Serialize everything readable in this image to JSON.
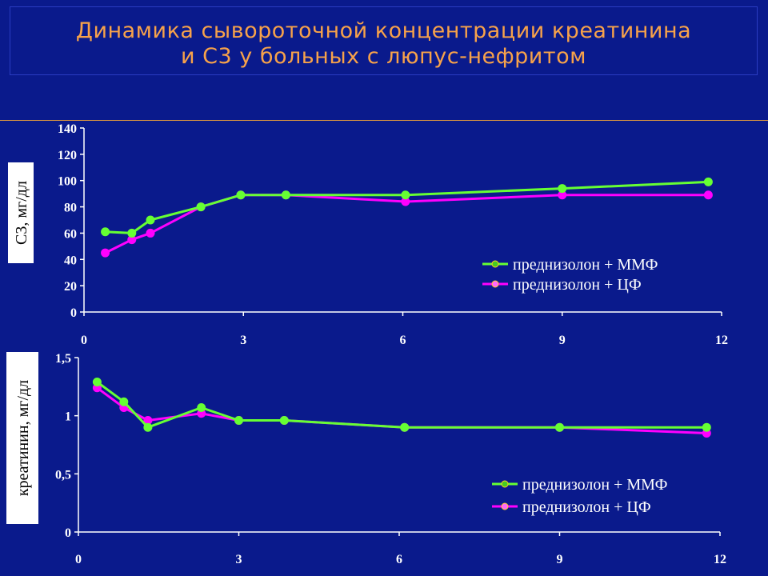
{
  "title": {
    "line1": "Динамика сывороточной концентрации креатинина",
    "line2": "и С3 у больных с люпус-нефритом"
  },
  "colors": {
    "background": "#0a1a8c",
    "title": "#f7a24a",
    "series_mmf_line": "#66ff33",
    "series_mmf_marker": "#44cc22",
    "series_cf_line": "#ff00ff",
    "series_cf_marker": "#ff66ff",
    "axis": "#ffffff"
  },
  "chart_data": [
    {
      "type": "line",
      "ylabel": "С3, мг/дл",
      "xlabel": "",
      "xlim": [
        0,
        12
      ],
      "ylim": [
        0,
        140
      ],
      "x_ticks": [
        "0",
        "3",
        "6",
        "9",
        "12"
      ],
      "x_tick_values": [
        0,
        3,
        6,
        9,
        12
      ],
      "y_ticks": [
        "0",
        "20",
        "40",
        "60",
        "80",
        "100",
        "120",
        "140"
      ],
      "y_tick_values": [
        0,
        20,
        40,
        60,
        80,
        100,
        120,
        140
      ],
      "grid": false,
      "legend_position": "bottom-right",
      "series": [
        {
          "name": "преднизолон + ММФ",
          "x": [
            0.4,
            0.9,
            1.25,
            2.2,
            2.95,
            3.8,
            6.05,
            9.0,
            11.75
          ],
          "y": [
            61,
            60,
            70,
            80,
            89,
            89,
            89,
            94,
            99
          ]
        },
        {
          "name": "преднизолон + ЦФ",
          "x": [
            0.4,
            0.9,
            1.25,
            2.2,
            2.95,
            3.8,
            6.05,
            9.0,
            11.75
          ],
          "y": [
            45,
            55,
            60,
            80,
            89,
            89,
            84,
            89,
            89
          ]
        }
      ]
    },
    {
      "type": "line",
      "ylabel": "креатинин, мг/дл",
      "xlabel": "",
      "xlim": [
        0,
        12
      ],
      "ylim": [
        0,
        1.5
      ],
      "x_ticks": [
        "0",
        "3",
        "6",
        "9",
        "12"
      ],
      "x_tick_values": [
        0,
        3,
        6,
        9,
        12
      ],
      "y_ticks": [
        "0",
        "0,5",
        "1",
        "1,5"
      ],
      "y_tick_values": [
        0,
        0.5,
        1,
        1.5
      ],
      "grid": false,
      "legend_position": "bottom-right",
      "series": [
        {
          "name": "преднизолон + ММФ",
          "x": [
            0.35,
            0.85,
            1.3,
            2.3,
            3.0,
            3.85,
            6.1,
            9.0,
            11.75
          ],
          "y": [
            1.29,
            1.12,
            0.9,
            1.07,
            0.96,
            0.96,
            0.9,
            0.9,
            0.9
          ]
        },
        {
          "name": "преднизолон + ЦФ",
          "x": [
            0.35,
            0.85,
            1.3,
            2.3,
            3.0,
            3.85,
            6.1,
            9.0,
            11.75
          ],
          "y": [
            1.24,
            1.07,
            0.96,
            1.02,
            0.96,
            0.96,
            0.9,
            0.9,
            0.85
          ]
        }
      ]
    }
  ]
}
